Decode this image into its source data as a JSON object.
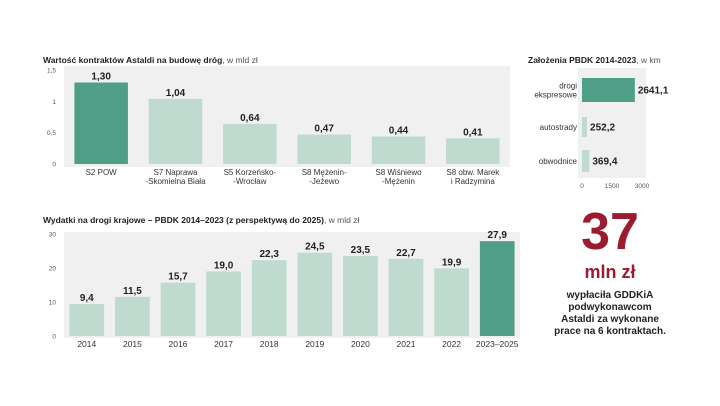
{
  "chart_data": [
    {
      "type": "bar",
      "title": "Wartość kontraktów Astaldi na budowę dróg",
      "unit": ", w mld zł",
      "categories": [
        [
          "S2 POW"
        ],
        [
          "S7 Naprawa",
          "-Skomielna Biała"
        ],
        [
          "S5 Korzeńsko-",
          "-Wrocław"
        ],
        [
          "S8 Mężenin-",
          "-Jeżewo"
        ],
        [
          "S8 Wiśniewo",
          "-Mężenin"
        ],
        [
          "S8 obw. Marek",
          "i Radzymina"
        ]
      ],
      "values": [
        1.3,
        1.04,
        0.64,
        0.47,
        0.44,
        0.41
      ],
      "value_labels": [
        "1,30",
        "1,04",
        "0,64",
        "0,47",
        "0,44",
        "0,41"
      ],
      "yticks": [
        "0",
        "0,5",
        "1",
        "1,5"
      ],
      "ylim": [
        0,
        1.5
      ],
      "highlight_index": 0
    },
    {
      "type": "bar",
      "title": "Wydatki na drogi krajowe – PBDK 2014–2023 (z perspektywą do 2025)",
      "unit": ", w mld zł",
      "categories": [
        "2014",
        "2015",
        "2016",
        "2017",
        "2018",
        "2019",
        "2020",
        "2021",
        "2022",
        "2023–2025"
      ],
      "values": [
        9.4,
        11.5,
        15.7,
        19.0,
        22.3,
        24.5,
        23.5,
        22.7,
        19.9,
        27.9
      ],
      "value_labels": [
        "9,4",
        "11,5",
        "15,7",
        "19,0",
        "22,3",
        "24,5",
        "23,5",
        "22,7",
        "19,9",
        "27,9"
      ],
      "yticks": [
        "0",
        "10",
        "20",
        "30"
      ],
      "ylim": [
        0,
        30
      ],
      "highlight_index": 9
    },
    {
      "type": "bar",
      "orientation": "horizontal",
      "title": "Założenia PBDK 2014-2023",
      "unit": ", w km",
      "categories": [
        [
          "drogi",
          "ekspresowe"
        ],
        [
          "autostrady"
        ],
        [
          "obwodnice"
        ]
      ],
      "values": [
        2641.1,
        252.2,
        369.4
      ],
      "value_labels": [
        "2641,1",
        "252,2",
        "369,4"
      ],
      "xticks": [
        "0",
        "1500",
        "3000"
      ],
      "xlim": [
        0,
        3000
      ],
      "highlight_index": 0
    }
  ],
  "callout": {
    "number": "37",
    "unit": "mln zł",
    "text": [
      "wypłaciła GDDKiA",
      "podwykonawcom",
      "Astaldi za wykonane",
      "prace na 6 kontraktach."
    ]
  },
  "colors": {
    "highlight": "#4e9e88",
    "bar": "#bfdbd0",
    "panel": "#f0f0f0",
    "accent": "#9b1b30"
  }
}
